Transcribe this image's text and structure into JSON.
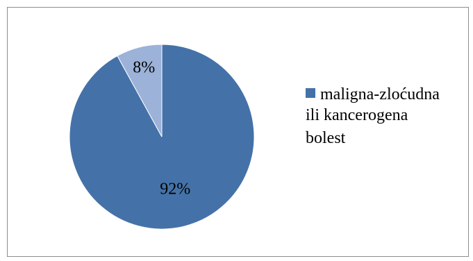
{
  "chart_data": {
    "type": "pie",
    "title": "",
    "slices": [
      {
        "name": "maligna-zloćudna ili kancerogena bolest",
        "value": 92,
        "label": "92%",
        "color": "#4472a8"
      },
      {
        "name": "",
        "value": 8,
        "label": "8%",
        "color": "#9cb2d8"
      }
    ],
    "legend": {
      "position": "right",
      "lines": [
        "maligna-zloćudna",
        "ili kancerogena",
        "bolest"
      ],
      "marker_color": "#4472a8"
    },
    "frame_border_color": "#8c8c8c"
  }
}
